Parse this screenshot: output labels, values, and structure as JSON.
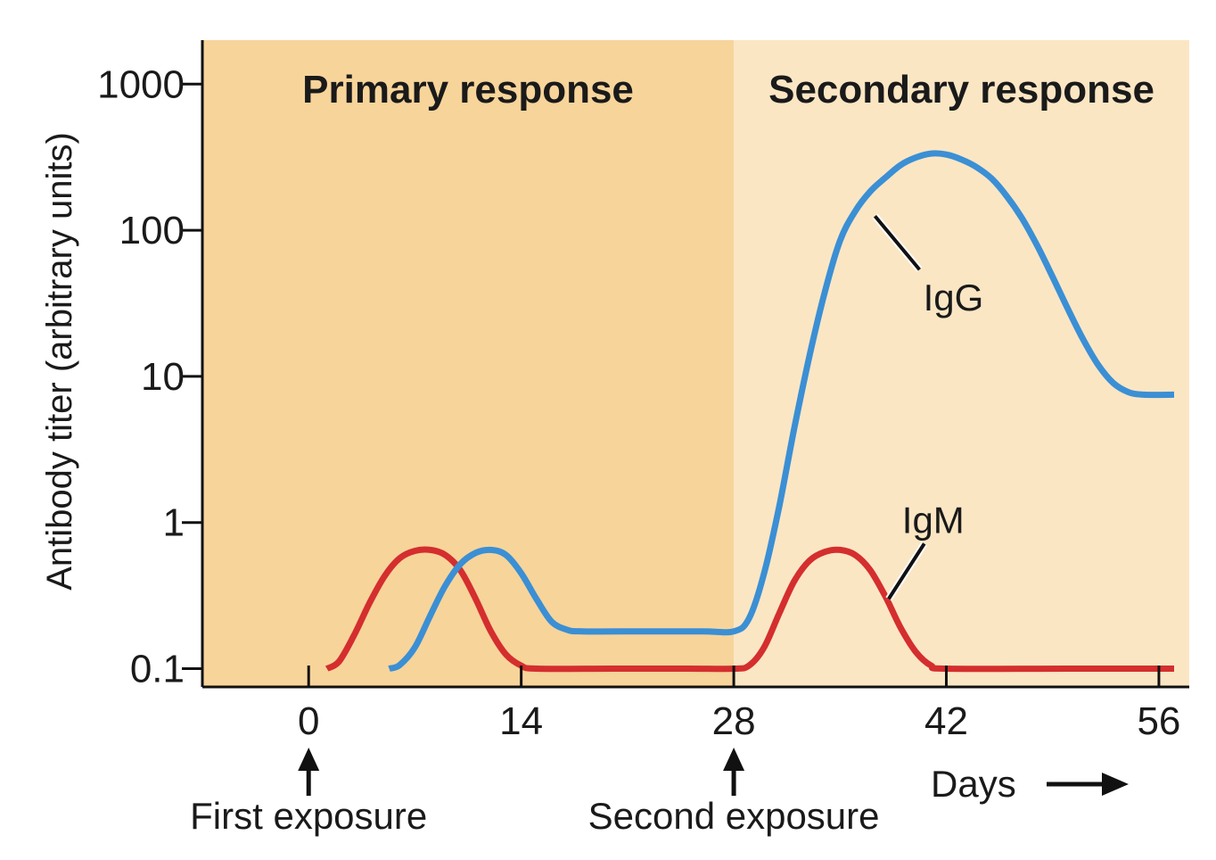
{
  "chart_data": {
    "type": "line",
    "yscale": "log",
    "ylabel": "Antibody titer (arbitrary units)",
    "xlabel": "Days",
    "x_arrow": "→",
    "xlim": [
      -7,
      58
    ],
    "ylim": [
      0.075,
      2000
    ],
    "x_ticks": [
      0,
      14,
      28,
      42,
      56
    ],
    "x_tick_labels": [
      "0",
      "14",
      "28",
      "42",
      "56"
    ],
    "y_ticks": [
      0.1,
      1,
      10,
      100,
      1000
    ],
    "y_tick_labels": [
      "0.1",
      "1",
      "10",
      "100",
      "1000"
    ],
    "regions": [
      {
        "label": "Primary response",
        "x_start": -7,
        "x_end": 28,
        "color": "#f7d49a"
      },
      {
        "label": "Secondary response",
        "x_start": 28,
        "x_end": 58,
        "color": "#fbe6c4"
      }
    ],
    "series": [
      {
        "name": "IgM",
        "color": "#d42e2e",
        "points": [
          [
            1.2,
            0.1
          ],
          [
            2,
            0.112
          ],
          [
            3,
            0.17
          ],
          [
            4,
            0.28
          ],
          [
            5,
            0.43
          ],
          [
            6,
            0.57
          ],
          [
            7,
            0.64
          ],
          [
            8,
            0.65
          ],
          [
            9,
            0.6
          ],
          [
            10,
            0.47
          ],
          [
            11,
            0.3
          ],
          [
            12,
            0.18
          ],
          [
            13,
            0.125
          ],
          [
            14,
            0.105
          ],
          [
            15,
            0.1
          ],
          [
            20,
            0.1
          ],
          [
            25,
            0.1
          ],
          [
            28,
            0.1
          ],
          [
            29,
            0.105
          ],
          [
            30,
            0.14
          ],
          [
            31,
            0.24
          ],
          [
            32,
            0.4
          ],
          [
            33,
            0.55
          ],
          [
            34,
            0.63
          ],
          [
            35,
            0.65
          ],
          [
            36,
            0.6
          ],
          [
            37,
            0.47
          ],
          [
            38,
            0.31
          ],
          [
            39,
            0.19
          ],
          [
            40,
            0.13
          ],
          [
            41,
            0.105
          ],
          [
            42,
            0.1
          ],
          [
            50,
            0.1
          ],
          [
            57,
            0.1
          ]
        ]
      },
      {
        "name": "IgG",
        "color": "#3b8fd4",
        "points": [
          [
            5.3,
            0.1
          ],
          [
            6,
            0.106
          ],
          [
            7,
            0.14
          ],
          [
            8,
            0.23
          ],
          [
            9,
            0.37
          ],
          [
            10,
            0.52
          ],
          [
            11,
            0.62
          ],
          [
            12,
            0.65
          ],
          [
            13,
            0.6
          ],
          [
            14,
            0.45
          ],
          [
            15,
            0.3
          ],
          [
            16,
            0.21
          ],
          [
            17,
            0.185
          ],
          [
            18,
            0.18
          ],
          [
            22,
            0.18
          ],
          [
            26,
            0.18
          ],
          [
            28,
            0.18
          ],
          [
            29,
            0.22
          ],
          [
            30,
            0.45
          ],
          [
            31,
            1.3
          ],
          [
            32,
            4.5
          ],
          [
            33,
            14
          ],
          [
            34,
            38
          ],
          [
            35,
            85
          ],
          [
            36,
            135
          ],
          [
            37,
            185
          ],
          [
            38,
            230
          ],
          [
            39,
            280
          ],
          [
            40,
            315
          ],
          [
            41,
            335
          ],
          [
            42,
            330
          ],
          [
            43,
            305
          ],
          [
            44,
            270
          ],
          [
            45,
            225
          ],
          [
            46,
            170
          ],
          [
            47,
            120
          ],
          [
            48,
            78
          ],
          [
            49,
            48
          ],
          [
            50,
            29
          ],
          [
            51,
            18
          ],
          [
            52,
            12
          ],
          [
            53,
            9
          ],
          [
            54,
            7.8
          ],
          [
            55,
            7.5
          ],
          [
            57,
            7.5
          ]
        ]
      }
    ],
    "annotations": [
      {
        "text": "IgG",
        "series": "IgG",
        "point": [
          37.3,
          125
        ]
      },
      {
        "text": "IgM",
        "series": "IgM",
        "point": [
          38.2,
          0.3
        ]
      },
      {
        "text": "First exposure",
        "x": 0
      },
      {
        "text": "Second exposure",
        "x": 28
      }
    ]
  }
}
